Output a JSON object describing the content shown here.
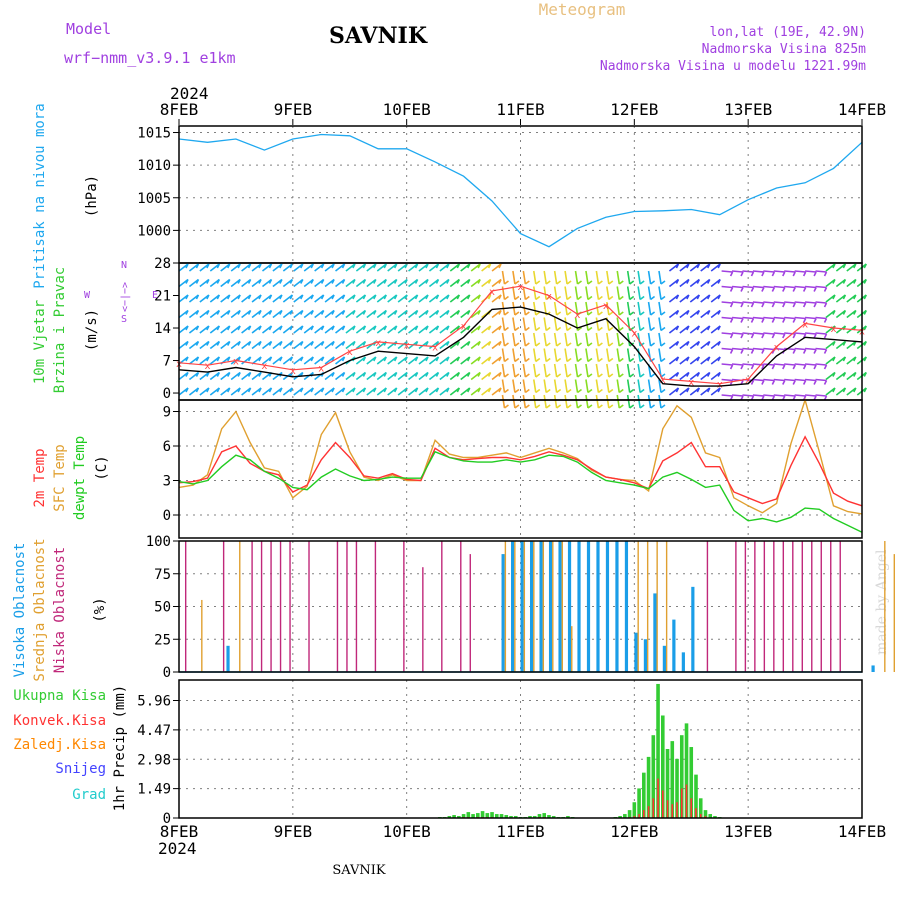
{
  "header": {
    "model_label": "Model",
    "model_name": "wrf−nmm_v3.9.1  e1km",
    "title": "SAVNIK",
    "meteogram": "Meteogram",
    "lonlat": "lon,lat (19E, 42.9N)",
    "height": "Nadmorska Visina 825m",
    "model_height": "Nadmorska Visina u modelu 1221.99m",
    "year_top": "2024",
    "year_bottom": "2024",
    "footer": "SAVNIK",
    "credit": "made by Angel"
  },
  "colors": {
    "pressure": "#1fa8ef",
    "temp2m": "#ff3333",
    "sfc": "#e0a030",
    "dewpt": "#22cc22",
    "high_cloud": "#1a9ee8",
    "mid_cloud": "#e0a030",
    "low_cloud": "#c0287a",
    "total_precip": "#33cc33",
    "conv_precip": "#ff3333",
    "frozen_precip": "#ff8800",
    "snow": "#4444ff",
    "hail": "#22cccc",
    "purple": "#a040e0",
    "grid": "#808080"
  },
  "chart_data": [
    {
      "type": "line",
      "panel": "pressure",
      "ylabel": "Pritisak na nivou mora",
      "unit": "(hPa)",
      "ylim": [
        995,
        1016
      ],
      "yticks": [
        1000,
        1005,
        1010,
        1015
      ],
      "x_days": [
        "8FEB",
        "9FEB",
        "10FEB",
        "11FEB",
        "12FEB",
        "13FEB",
        "14FEB"
      ],
      "x": [
        0,
        6,
        12,
        18,
        24,
        30,
        36,
        42,
        48,
        54,
        60,
        66,
        72,
        78,
        84,
        90,
        96,
        102,
        108,
        114,
        120,
        126,
        132,
        138,
        144
      ],
      "values": [
        1014,
        1013.5,
        1014,
        1012.3,
        1014,
        1014.7,
        1014.5,
        1012.5,
        1012.5,
        1010.5,
        1008.3,
        1004.5,
        999.5,
        997.5,
        1000.3,
        1002,
        1002.9,
        1003,
        1003.2,
        1002.4,
        1004.7,
        1006.5,
        1007.3,
        1009.5,
        1013.5
      ]
    },
    {
      "type": "line",
      "panel": "wind",
      "ylabel": [
        "10m Vjetar",
        "Brzina i Pravac"
      ],
      "unit": "(m/s)",
      "direction_legend": [
        "W",
        "<−|−>",
        "N",
        "E",
        "S"
      ],
      "ylim": [
        -1.5,
        28
      ],
      "yticks": [
        0,
        7,
        14,
        21,
        28
      ],
      "x": [
        0,
        6,
        12,
        18,
        24,
        30,
        36,
        42,
        48,
        54,
        60,
        66,
        72,
        78,
        84,
        90,
        96,
        102,
        108,
        114,
        120,
        126,
        132,
        138,
        144
      ],
      "series": [
        {
          "values": [
            5,
            4.5,
            5.5,
            4.5,
            3.5,
            4,
            7,
            9,
            8.5,
            8,
            12,
            18,
            18.5,
            17,
            14,
            16,
            10,
            2,
            1.5,
            1.5,
            2,
            8,
            12,
            11.5,
            11
          ]
        },
        {
          "values": [
            6.5,
            6,
            7,
            6,
            5,
            5.5,
            9,
            11,
            10.5,
            10,
            14.5,
            22,
            23,
            21,
            17,
            19,
            13,
            3,
            2.5,
            2,
            3,
            10,
            15,
            14,
            13.5
          ]
        }
      ]
    },
    {
      "type": "line",
      "panel": "temperature",
      "ylabel": [
        "2m Temp",
        "SFC Temp",
        "dewpt Temp"
      ],
      "unit": "(C)",
      "ylim": [
        -2,
        10
      ],
      "yticks": [
        0,
        3,
        6,
        9
      ],
      "x": [
        0,
        3,
        6,
        9,
        12,
        15,
        18,
        21,
        24,
        27,
        30,
        33,
        36,
        39,
        42,
        45,
        48,
        51,
        54,
        57,
        60,
        63,
        66,
        69,
        72,
        75,
        78,
        81,
        84,
        87,
        90,
        93,
        96,
        99,
        102,
        105,
        108,
        111,
        114,
        117,
        120,
        123,
        126,
        129,
        132,
        135,
        138,
        141,
        144
      ],
      "series": [
        {
          "name": "2m Temp",
          "values": [
            2.8,
            2.9,
            3.2,
            5.5,
            6.0,
            4.5,
            3.8,
            3.5,
            2.0,
            2.6,
            4.8,
            6.3,
            5.0,
            3.4,
            3.2,
            3.6,
            3.1,
            3.0,
            5.8,
            5.0,
            4.8,
            4.9,
            5.0,
            5.0,
            4.8,
            5.1,
            5.5,
            5.2,
            4.8,
            4.0,
            3.3,
            3.1,
            2.8,
            2.3,
            4.7,
            5.4,
            6.3,
            4.2,
            4.2,
            2.0,
            1.5,
            1.0,
            1.4,
            4.3,
            6.8,
            4.5,
            1.9,
            1.2,
            0.8
          ]
        },
        {
          "name": "SFC Temp",
          "values": [
            2.4,
            2.6,
            3.5,
            7.5,
            9.0,
            6.3,
            4.1,
            3.8,
            1.5,
            2.5,
            7.0,
            8.9,
            5.5,
            3.3,
            3.0,
            3.5,
            3.0,
            3.0,
            6.5,
            5.3,
            5.0,
            5.0,
            5.2,
            5.4,
            5.0,
            5.4,
            5.8,
            5.4,
            4.9,
            3.9,
            3.3,
            3.1,
            3.0,
            2.1,
            7.5,
            9.5,
            8.5,
            5.4,
            5.0,
            1.5,
            0.8,
            0.2,
            1.0,
            6.2,
            10.0,
            5.5,
            0.8,
            0.3,
            0.1
          ]
        },
        {
          "name": "dewpt Temp",
          "values": [
            2.9,
            2.7,
            3.0,
            4.2,
            5.2,
            4.8,
            3.8,
            3.2,
            2.4,
            2.2,
            3.3,
            4.0,
            3.4,
            3.0,
            3.1,
            3.3,
            3.2,
            3.2,
            5.5,
            5.0,
            4.7,
            4.6,
            4.6,
            4.8,
            4.6,
            4.8,
            5.2,
            5.1,
            4.6,
            3.7,
            3.0,
            2.8,
            2.6,
            2.3,
            3.3,
            3.7,
            3.1,
            2.4,
            2.6,
            0.4,
            -0.5,
            -0.3,
            -0.6,
            -0.2,
            0.6,
            0.5,
            -0.3,
            -0.9,
            -1.5
          ]
        }
      ]
    },
    {
      "type": "bar",
      "panel": "clouds",
      "ylabel": [
        "Visoka Oblacnost",
        "Srednja Oblacnost",
        "Niska Oblacnost"
      ],
      "unit": "(%)",
      "ylim": [
        0,
        100
      ],
      "yticks": [
        0,
        25,
        50,
        75,
        100
      ],
      "x_step_hours": 2,
      "series": [
        {
          "name": "Visoka Oblacnost",
          "values": [
            0,
            0,
            0,
            0,
            0,
            20,
            0,
            0,
            0,
            0,
            0,
            0,
            0,
            0,
            0,
            0,
            0,
            0,
            0,
            0,
            0,
            0,
            0,
            0,
            0,
            0,
            0,
            0,
            0,
            0,
            0,
            0,
            0,
            0,
            90,
            100,
            100,
            100,
            100,
            100,
            100,
            100,
            100,
            100,
            100,
            100,
            100,
            100,
            30,
            25,
            60,
            20,
            40,
            15,
            65,
            0,
            0,
            0,
            0,
            0,
            0,
            0,
            0,
            0,
            0,
            0,
            0,
            0,
            0,
            0,
            0,
            0,
            0,
            5,
            0,
            0,
            0,
            0,
            0,
            0,
            0,
            0,
            0,
            0,
            0,
            0,
            0,
            0,
            0,
            0,
            0,
            0,
            0,
            0,
            0,
            0,
            0,
            0,
            0,
            0,
            0,
            0,
            0,
            0,
            0,
            0,
            0,
            0,
            0,
            0,
            0,
            0,
            0,
            0,
            0,
            0,
            0,
            0,
            0,
            0,
            0,
            0,
            0,
            0,
            0,
            0,
            0,
            0,
            0,
            0,
            0,
            0,
            0,
            0,
            95,
            0,
            0,
            0,
            0,
            0,
            85,
            90,
            100,
            100
          ]
        },
        {
          "name": "Srednja Oblacnost",
          "values": [
            0,
            0,
            55,
            0,
            0,
            0,
            100,
            0,
            0,
            0,
            0,
            0,
            0,
            0,
            0,
            0,
            0,
            0,
            0,
            0,
            0,
            0,
            0,
            0,
            0,
            0,
            0,
            0,
            0,
            0,
            0,
            0,
            0,
            0,
            100,
            100,
            100,
            100,
            100,
            100,
            100,
            35,
            0,
            0,
            0,
            0,
            0,
            0,
            100,
            100,
            100,
            100,
            0,
            0,
            0,
            0,
            0,
            0,
            0,
            0,
            0,
            0,
            0,
            0,
            0,
            0,
            0,
            0,
            0,
            0,
            0,
            0,
            0,
            0,
            100,
            90,
            70,
            0,
            0,
            0,
            0,
            0,
            100,
            100,
            100,
            100,
            100,
            100,
            100,
            100,
            0,
            50,
            100,
            100,
            100,
            100,
            100,
            100,
            100,
            100,
            100,
            100,
            100,
            100,
            100,
            100,
            100,
            100,
            100,
            100,
            100,
            100,
            100,
            100,
            100,
            30,
            35,
            35,
            0,
            80,
            0,
            0,
            0,
            0,
            0,
            0,
            100,
            100,
            100,
            100,
            100,
            0,
            0,
            0,
            0,
            0,
            0,
            100,
            100,
            100,
            100,
            100,
            100,
            100
          ]
        },
        {
          "name": "Niska Oblacnost",
          "values": [
            100,
            0,
            0,
            0,
            100,
            0,
            0,
            100,
            100,
            100,
            100,
            100,
            0,
            100,
            0,
            0,
            100,
            100,
            100,
            0,
            100,
            0,
            0,
            100,
            0,
            80,
            0,
            100,
            0,
            100,
            90,
            0,
            0,
            0,
            0,
            0,
            0,
            0,
            0,
            0,
            0,
            0,
            0,
            0,
            0,
            0,
            0,
            0,
            0,
            0,
            0,
            0,
            0,
            0,
            0,
            100,
            0,
            0,
            100,
            100,
            100,
            100,
            100,
            100,
            100,
            100,
            100,
            100,
            100,
            100,
            0,
            0,
            0,
            0,
            0,
            0,
            0,
            0,
            100,
            100,
            100,
            0,
            0,
            0,
            0,
            0,
            0,
            0,
            0,
            0,
            0,
            0,
            0,
            0,
            0,
            0,
            0,
            0,
            0,
            0,
            0,
            0,
            0,
            0,
            0,
            0,
            0,
            0,
            0,
            0,
            0,
            0,
            0,
            0,
            0,
            0,
            0,
            0,
            0,
            0,
            0,
            0,
            0,
            0,
            0,
            0,
            0,
            0,
            0,
            0,
            0,
            0,
            0,
            0,
            0,
            0,
            0,
            0,
            0,
            0,
            0,
            0,
            0,
            0
          ]
        }
      ]
    },
    {
      "type": "bar",
      "panel": "precipitation",
      "ylabel": "1hr Precip (mm)",
      "legend": [
        "Ukupna Kisa",
        "Konvek.Kisa",
        "Zaledj.Kisa",
        "Snijeg",
        "Grad"
      ],
      "ylim": [
        0,
        7
      ],
      "yticks": [
        1.49,
        2.98,
        4.47,
        5.96
      ],
      "x_step_hours": 1,
      "start_hour": 54,
      "total": [
        0.02,
        0.05,
        0.05,
        0.1,
        0.15,
        0.1,
        0.2,
        0.3,
        0.2,
        0.25,
        0.35,
        0.25,
        0.3,
        0.2,
        0.2,
        0.15,
        0.1,
        0.1,
        0.05,
        0.05,
        0.1,
        0.1,
        0.2,
        0.25,
        0.15,
        0.1,
        0.05,
        0.05,
        0.1,
        0.05,
        0.02,
        0,
        0,
        0,
        0,
        0,
        0,
        0,
        0.05,
        0.1,
        0.2,
        0.4,
        0.8,
        1.5,
        2.3,
        3.1,
        4.2,
        6.8,
        5.2,
        3.5,
        3.9,
        3.0,
        4.2,
        4.8,
        3.6,
        2.2,
        1.0,
        0.4,
        0.2,
        0.1,
        0.05
      ],
      "convective": [
        0,
        0,
        0,
        0,
        0,
        0,
        0.05,
        0.05,
        0,
        0.05,
        0.05,
        0.05,
        0.05,
        0,
        0,
        0,
        0,
        0,
        0,
        0,
        0,
        0,
        0.05,
        0.05,
        0,
        0,
        0,
        0,
        0,
        0,
        0,
        0,
        0,
        0,
        0,
        0,
        0,
        0,
        0,
        0,
        0,
        0.05,
        0.1,
        0.2,
        0.4,
        0.6,
        1.0,
        2.0,
        1.4,
        0.9,
        0.7,
        0.8,
        1.5,
        1.7,
        1.0,
        0.5,
        0.2,
        0.1,
        0,
        0,
        0
      ]
    }
  ]
}
